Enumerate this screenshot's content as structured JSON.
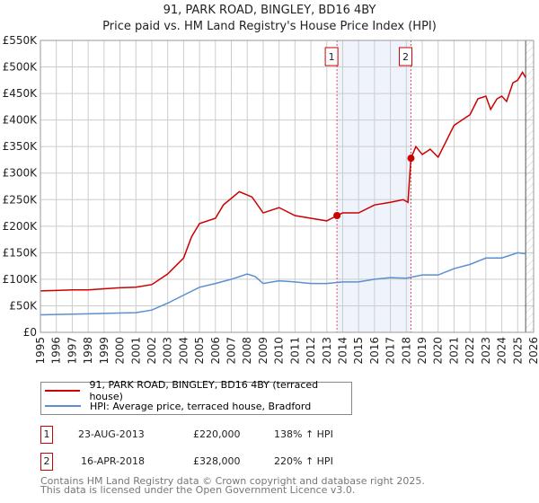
{
  "chart_data": {
    "type": "line",
    "title": "91, PARK ROAD, BINGLEY, BD16 4BY",
    "subtitle": "Price paid vs. HM Land Registry's House Price Index (HPI)",
    "xlim": [
      1995,
      2026
    ],
    "ylim": [
      0,
      550000
    ],
    "yticks": [
      0,
      50000,
      100000,
      150000,
      200000,
      250000,
      300000,
      350000,
      400000,
      450000,
      500000,
      550000
    ],
    "ytick_labels": [
      "£0",
      "£50K",
      "£100K",
      "£150K",
      "£200K",
      "£250K",
      "£300K",
      "£350K",
      "£400K",
      "£450K",
      "£500K",
      "£550K"
    ],
    "xticks": [
      "1995",
      "1996",
      "1997",
      "1998",
      "1999",
      "2000",
      "2001",
      "2002",
      "2003",
      "2004",
      "2005",
      "2006",
      "2007",
      "2008",
      "2009",
      "2010",
      "2011",
      "2012",
      "2013",
      "2014",
      "2015",
      "2016",
      "2017",
      "2018",
      "2019",
      "2020",
      "2021",
      "2022",
      "2023",
      "2024",
      "2025",
      "2026"
    ],
    "grid": true,
    "series": [
      {
        "name": "91, PARK ROAD, BINGLEY, BD16 4BY (terraced house)",
        "color": "#cc0000",
        "x": [
          1995,
          1996,
          1997,
          1998,
          1999,
          2000,
          2001,
          2002,
          2003,
          2004,
          2004.5,
          2005,
          2006,
          2006.5,
          2007.5,
          2008.3,
          2009,
          2009.5,
          2010,
          2011,
          2012,
          2013,
          2013.64,
          2014,
          2015,
          2016,
          2017,
          2017.8,
          2018.1,
          2018.29,
          2018.6,
          2019,
          2019.5,
          2020,
          2020.5,
          2021,
          2021.5,
          2022,
          2022.5,
          2023,
          2023.3,
          2023.7,
          2024,
          2024.3,
          2024.7,
          2025,
          2025.3,
          2025.5
        ],
        "y": [
          78000,
          79000,
          80000,
          80000,
          82000,
          84000,
          85000,
          90000,
          110000,
          140000,
          180000,
          205000,
          215000,
          240000,
          265000,
          255000,
          225000,
          230000,
          235000,
          220000,
          215000,
          210000,
          220000,
          225000,
          225000,
          240000,
          245000,
          250000,
          245000,
          328000,
          350000,
          335000,
          345000,
          330000,
          360000,
          390000,
          400000,
          410000,
          440000,
          445000,
          420000,
          440000,
          445000,
          435000,
          470000,
          475000,
          490000,
          480000
        ]
      },
      {
        "name": "HPI: Average price, terraced house, Bradford",
        "color": "#5b8fd0",
        "x": [
          1995,
          1998,
          2001,
          2002,
          2003,
          2004,
          2005,
          2006,
          2007,
          2008,
          2008.5,
          2009,
          2010,
          2011,
          2012,
          2013,
          2014,
          2015,
          2016,
          2017,
          2018,
          2019,
          2020,
          2021,
          2022,
          2023,
          2024,
          2025,
          2025.5
        ],
        "y": [
          33000,
          35000,
          37000,
          42000,
          55000,
          70000,
          85000,
          92000,
          100000,
          110000,
          105000,
          92000,
          97000,
          95000,
          92000,
          92000,
          95000,
          95000,
          100000,
          103000,
          102000,
          108000,
          108000,
          120000,
          128000,
          140000,
          140000,
          150000,
          148000
        ]
      }
    ],
    "annotations": [
      {
        "label": "1",
        "date": "23-AUG-2013",
        "x": 2013.64,
        "price": "£220,000",
        "value": 220000,
        "hpi": "138% ↑ HPI"
      },
      {
        "label": "2",
        "date": "16-APR-2018",
        "x": 2018.29,
        "price": "£328,000",
        "value": 328000,
        "hpi": "220% ↑ HPI"
      }
    ],
    "legend_placement": "below"
  },
  "footer": [
    "Contains HM Land Registry data © Crown copyright and database right 2025.",
    "This data is licensed under the Open Government Licence v3.0."
  ]
}
